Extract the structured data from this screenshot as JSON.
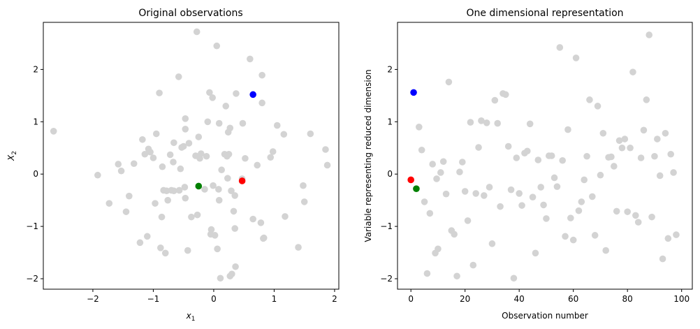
{
  "chart_data": [
    {
      "type": "scatter",
      "title": "Original observations",
      "xlabel_base": "x",
      "xlabel_sub": "1",
      "ylabel_base": "X",
      "ylabel_sub": "2",
      "xlim": [
        -2.82,
        2.07
      ],
      "ylim": [
        -2.2,
        2.9
      ],
      "xticks": [
        -2,
        -1,
        0,
        1,
        2
      ],
      "yticks": [
        -2,
        -1,
        0,
        1,
        2
      ],
      "background_color": "#d3d3d3",
      "background_points": [
        [
          -2.65,
          0.82
        ],
        [
          -1.92,
          -0.02
        ],
        [
          -1.73,
          -0.56
        ],
        [
          -1.58,
          0.19
        ],
        [
          -1.53,
          0.06
        ],
        [
          -1.45,
          -0.72
        ],
        [
          -1.4,
          -0.42
        ],
        [
          -1.32,
          0.2
        ],
        [
          -1.22,
          -1.31
        ],
        [
          -1.18,
          0.66
        ],
        [
          -1.14,
          0.38
        ],
        [
          -1.1,
          -1.19
        ],
        [
          -1.08,
          0.48
        ],
        [
          -1.05,
          0.42
        ],
        [
          -1.0,
          0.31
        ],
        [
          -0.97,
          -0.56
        ],
        [
          -0.95,
          0.77
        ],
        [
          -0.9,
          1.55
        ],
        [
          -0.88,
          -1.41
        ],
        [
          -0.86,
          -0.82
        ],
        [
          -0.85,
          0.14
        ],
        [
          -0.83,
          -0.31
        ],
        [
          -0.8,
          -1.51
        ],
        [
          -0.78,
          -0.32
        ],
        [
          -0.76,
          -0.5
        ],
        [
          -0.72,
          0.37
        ],
        [
          -0.7,
          -0.31
        ],
        [
          -0.67,
          0.23
        ],
        [
          -0.66,
          -0.32
        ],
        [
          -0.66,
          0.6
        ],
        [
          -0.58,
          1.86
        ],
        [
          -0.57,
          -0.31
        ],
        [
          -0.55,
          0.1
        ],
        [
          -0.53,
          0.51
        ],
        [
          -0.5,
          0.53
        ],
        [
          -0.48,
          -0.25
        ],
        [
          -0.47,
          1.06
        ],
        [
          -0.47,
          0.86
        ],
        [
          -0.47,
          -0.46
        ],
        [
          -0.43,
          -1.46
        ],
        [
          -0.41,
          0.59
        ],
        [
          -0.37,
          -0.82
        ],
        [
          -0.3,
          0.35
        ],
        [
          -0.28,
          2.72
        ],
        [
          -0.27,
          -0.78
        ],
        [
          -0.25,
          0.71
        ],
        [
          -0.23,
          0.3
        ],
        [
          -0.21,
          0.39
        ],
        [
          -0.15,
          -0.29
        ],
        [
          -0.12,
          0.34
        ],
        [
          -0.1,
          1.0
        ],
        [
          -0.07,
          1.56
        ],
        [
          -0.05,
          -1.15
        ],
        [
          -0.04,
          -1.06
        ],
        [
          -0.02,
          1.46
        ],
        [
          -0.01,
          -0.22
        ],
        [
          0.02,
          -1.17
        ],
        [
          0.05,
          2.45
        ],
        [
          0.06,
          -1.43
        ],
        [
          0.08,
          -0.29
        ],
        [
          0.09,
          -0.5
        ],
        [
          0.09,
          0.97
        ],
        [
          0.11,
          -1.99
        ],
        [
          0.13,
          0.08
        ],
        [
          0.18,
          0.38
        ],
        [
          0.2,
          1.3
        ],
        [
          0.22,
          0.34
        ],
        [
          0.23,
          -0.08
        ],
        [
          0.24,
          0.8
        ],
        [
          0.25,
          0.38
        ],
        [
          0.27,
          -1.95
        ],
        [
          0.27,
          0.88
        ],
        [
          0.29,
          -0.32
        ],
        [
          0.3,
          -1.91
        ],
        [
          0.33,
          -0.71
        ],
        [
          0.35,
          -0.41
        ],
        [
          0.35,
          -1.04
        ],
        [
          0.36,
          -1.77
        ],
        [
          0.37,
          1.54
        ],
        [
          0.47,
          -0.09
        ],
        [
          0.48,
          0.97
        ],
        [
          0.52,
          0.3
        ],
        [
          0.6,
          2.2
        ],
        [
          0.65,
          -0.86
        ],
        [
          0.72,
          0.17
        ],
        [
          0.78,
          -0.93
        ],
        [
          0.8,
          1.89
        ],
        [
          0.8,
          1.36
        ],
        [
          0.82,
          -1.23
        ],
        [
          0.83,
          -1.22
        ],
        [
          0.94,
          0.32
        ],
        [
          0.98,
          0.43
        ],
        [
          1.05,
          0.93
        ],
        [
          1.16,
          0.76
        ],
        [
          1.18,
          -0.81
        ],
        [
          1.4,
          -1.4
        ],
        [
          1.48,
          -0.22
        ],
        [
          1.5,
          -0.53
        ],
        [
          1.6,
          0.77
        ],
        [
          1.85,
          0.47
        ],
        [
          1.88,
          0.17
        ]
      ],
      "highlighted_points": [
        {
          "color": "#0000ff",
          "x": 0.65,
          "y": 1.52
        },
        {
          "color": "#ff0000",
          "x": 0.47,
          "y": -0.13
        },
        {
          "color": "#008000",
          "x": -0.25,
          "y": -0.23
        }
      ]
    },
    {
      "type": "scatter",
      "title": "One dimensional representation",
      "xlabel": "Observation number",
      "ylabel": "Variable representing reduced dimension",
      "xlim": [
        -4.95,
        103.95
      ],
      "ylim": [
        -2.2,
        2.9
      ],
      "xticks": [
        0,
        20,
        40,
        60,
        80,
        100
      ],
      "yticks": [
        -2,
        -1,
        0,
        1,
        2
      ],
      "background_color": "#d3d3d3",
      "background_points": [
        [
          3,
          0.9
        ],
        [
          4,
          0.46
        ],
        [
          5,
          -0.53
        ],
        [
          6,
          -1.9
        ],
        [
          7,
          -0.75
        ],
        [
          8,
          0.19
        ],
        [
          9,
          -1.51
        ],
        [
          9.5,
          -0.09
        ],
        [
          10,
          -1.43
        ],
        [
          11,
          0.03
        ],
        [
          12,
          0.24
        ],
        [
          13,
          -0.38
        ],
        [
          14,
          1.76
        ],
        [
          15,
          -1.08
        ],
        [
          16,
          -1.15
        ],
        [
          17,
          -1.95
        ],
        [
          18,
          0.04
        ],
        [
          19,
          0.23
        ],
        [
          20,
          -0.33
        ],
        [
          21,
          -0.89
        ],
        [
          22,
          0.99
        ],
        [
          23,
          -1.74
        ],
        [
          24,
          -0.37
        ],
        [
          25,
          0.51
        ],
        [
          26,
          1.02
        ],
        [
          27,
          -0.41
        ],
        [
          28,
          0.98
        ],
        [
          29,
          -0.25
        ],
        [
          30,
          -1.33
        ],
        [
          31,
          1.41
        ],
        [
          32,
          0.97
        ],
        [
          33,
          -0.62
        ],
        [
          34,
          1.54
        ],
        [
          35,
          1.52
        ],
        [
          36,
          0.53
        ],
        [
          37,
          -0.3
        ],
        [
          38,
          -1.99
        ],
        [
          39,
          0.31
        ],
        [
          40,
          -0.37
        ],
        [
          41,
          -0.6
        ],
        [
          42,
          0.4
        ],
        [
          43,
          0.44
        ],
        [
          44,
          0.96
        ],
        [
          45,
          -0.44
        ],
        [
          46,
          -1.51
        ],
        [
          47,
          0.27
        ],
        [
          48,
          -0.25
        ],
        [
          49,
          -0.59
        ],
        [
          50,
          -0.85
        ],
        [
          51,
          0.35
        ],
        [
          52,
          0.35
        ],
        [
          53,
          -0.07
        ],
        [
          54,
          -0.24
        ],
        [
          55,
          2.42
        ],
        [
          56,
          0.26
        ],
        [
          57,
          -1.19
        ],
        [
          58,
          0.85
        ],
        [
          59,
          -0.84
        ],
        [
          60,
          -1.26
        ],
        [
          61,
          2.22
        ],
        [
          62,
          -0.7
        ],
        [
          63,
          -0.53
        ],
        [
          64,
          -0.11
        ],
        [
          65,
          0.34
        ],
        [
          66,
          1.42
        ],
        [
          67,
          -0.43
        ],
        [
          68,
          -1.17
        ],
        [
          69,
          1.3
        ],
        [
          70,
          -0.02
        ],
        [
          71,
          0.78
        ],
        [
          72,
          -1.46
        ],
        [
          73,
          0.32
        ],
        [
          74,
          0.33
        ],
        [
          75,
          0.15
        ],
        [
          76,
          -0.71
        ],
        [
          77,
          0.64
        ],
        [
          78,
          0.5
        ],
        [
          79,
          0.67
        ],
        [
          80,
          -0.72
        ],
        [
          81,
          0.5
        ],
        [
          82,
          1.95
        ],
        [
          83,
          -0.79
        ],
        [
          84,
          -0.92
        ],
        [
          85,
          0.31
        ],
        [
          86,
          0.84
        ],
        [
          87,
          1.42
        ],
        [
          88,
          2.66
        ],
        [
          89,
          -0.82
        ],
        [
          90,
          0.34
        ],
        [
          91,
          0.67
        ],
        [
          92,
          -0.03
        ],
        [
          93,
          -1.62
        ],
        [
          94,
          0.78
        ],
        [
          95,
          -1.23
        ],
        [
          96,
          0.38
        ],
        [
          97,
          0.03
        ],
        [
          98,
          -1.16
        ]
      ],
      "highlighted_points": [
        {
          "color": "#0000ff",
          "x": 1,
          "y": 1.56
        },
        {
          "color": "#ff0000",
          "x": 0,
          "y": -0.11
        },
        {
          "color": "#008000",
          "x": 2,
          "y": -0.28
        }
      ]
    }
  ]
}
